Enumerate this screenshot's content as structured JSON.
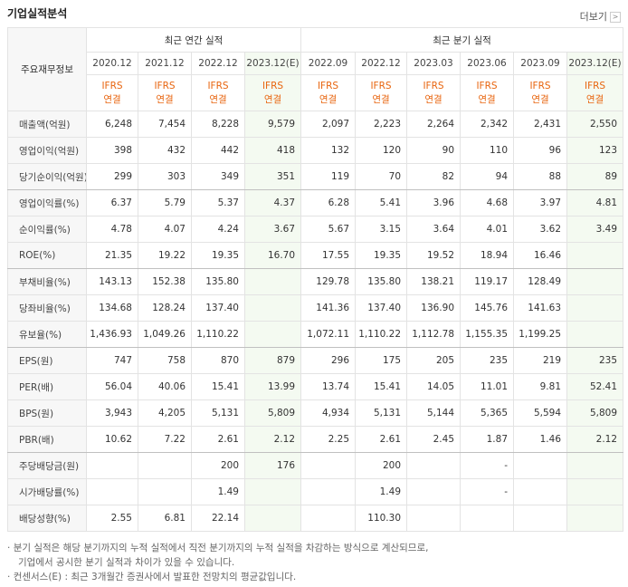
{
  "title": "기업실적분석",
  "more_link": "더보기",
  "table": {
    "corner": "주요재무정보",
    "groups": [
      "최근 연간 실적",
      "최근 분기 실적"
    ],
    "columns": [
      {
        "period": "2020.12",
        "standard": "IFRS",
        "scope": "연결"
      },
      {
        "period": "2021.12",
        "standard": "IFRS",
        "scope": "연결"
      },
      {
        "period": "2022.12",
        "standard": "IFRS",
        "scope": "연결"
      },
      {
        "period": "2023.12(E)",
        "standard": "IFRS",
        "scope": "연결"
      },
      {
        "period": "2022.09",
        "standard": "IFRS",
        "scope": "연결"
      },
      {
        "period": "2022.12",
        "standard": "IFRS",
        "scope": "연결"
      },
      {
        "period": "2023.03",
        "standard": "IFRS",
        "scope": "연결"
      },
      {
        "period": "2023.06",
        "standard": "IFRS",
        "scope": "연결"
      },
      {
        "period": "2023.09",
        "standard": "IFRS",
        "scope": "연결"
      },
      {
        "period": "2023.12(E)",
        "standard": "IFRS",
        "scope": "연결"
      }
    ],
    "rows": [
      {
        "label": "매출액(억원)",
        "cells": [
          "6,248",
          "7,454",
          "8,228",
          "9,579",
          "2,097",
          "2,223",
          "2,264",
          "2,342",
          "2,431",
          "2,550"
        ]
      },
      {
        "label": "영업이익(억원)",
        "cells": [
          "398",
          "432",
          "442",
          "418",
          "132",
          "120",
          "90",
          "110",
          "96",
          "123"
        ]
      },
      {
        "label": "당기순이익(억원)",
        "cells": [
          "299",
          "303",
          "349",
          "351",
          "119",
          "70",
          "82",
          "94",
          "88",
          "89"
        ]
      },
      {
        "label": "영업이익률(%)",
        "cells": [
          "6.37",
          "5.79",
          "5.37",
          "4.37",
          "6.28",
          "5.41",
          "3.96",
          "4.68",
          "3.97",
          "4.81"
        ]
      },
      {
        "label": "순이익률(%)",
        "cells": [
          "4.78",
          "4.07",
          "4.24",
          "3.67",
          "5.67",
          "3.15",
          "3.64",
          "4.01",
          "3.62",
          "3.49"
        ]
      },
      {
        "label": "ROE(%)",
        "cells": [
          "21.35",
          "19.22",
          "19.35",
          "16.70",
          "17.55",
          "19.35",
          "19.52",
          "18.94",
          "16.46",
          null
        ]
      },
      {
        "label": "부채비율(%)",
        "cells": [
          "143.13",
          "152.38",
          "135.80",
          null,
          "129.78",
          "135.80",
          "138.21",
          "119.17",
          "128.49",
          null
        ]
      },
      {
        "label": "당좌비율(%)",
        "cells": [
          "134.68",
          "128.24",
          "137.40",
          null,
          "141.36",
          "137.40",
          "136.90",
          "145.76",
          "141.63",
          null
        ]
      },
      {
        "label": "유보율(%)",
        "cells": [
          "1,436.93",
          "1,049.26",
          "1,110.22",
          null,
          "1,072.11",
          "1,110.22",
          "1,112.78",
          "1,155.35",
          "1,199.25",
          null
        ]
      },
      {
        "label": "EPS(원)",
        "cells": [
          "747",
          "758",
          "870",
          "879",
          "296",
          "175",
          "205",
          "235",
          "219",
          "235"
        ]
      },
      {
        "label": "PER(배)",
        "cells": [
          "56.04",
          "40.06",
          "15.41",
          "13.99",
          "13.74",
          "15.41",
          "14.05",
          "11.01",
          "9.81",
          "52.41"
        ]
      },
      {
        "label": "BPS(원)",
        "cells": [
          "3,943",
          "4,205",
          "5,131",
          "5,809",
          "4,934",
          "5,131",
          "5,144",
          "5,365",
          "5,594",
          "5,809"
        ]
      },
      {
        "label": "PBR(배)",
        "cells": [
          "10.62",
          "7.22",
          "2.61",
          "2.12",
          "2.25",
          "2.61",
          "2.45",
          "1.87",
          "1.46",
          "2.12"
        ]
      },
      {
        "label": "주당배당금(원)",
        "cells": [
          null,
          null,
          "200",
          "176",
          null,
          "200",
          null,
          "-",
          null,
          null
        ]
      },
      {
        "label": "시가배당률(%)",
        "cells": [
          null,
          null,
          "1.49",
          null,
          null,
          "1.49",
          null,
          "-",
          null,
          null
        ]
      },
      {
        "label": "배당성향(%)",
        "cells": [
          "2.55",
          "6.81",
          "22.14",
          null,
          null,
          "110.30",
          null,
          null,
          null,
          null
        ]
      }
    ]
  },
  "notes": [
    "분기 실적은 해당 분기까지의 누적 실적에서 직전 분기까지의 누적 실적을 차감하는 방식으로 계산되므로,",
    "기업에서 공시한 분기 실적과 차이가 있을 수 있습니다.",
    "컨센서스(E) : 최근 3개월간 증권사에서 발표한 전망치의 평균값입니다."
  ]
}
